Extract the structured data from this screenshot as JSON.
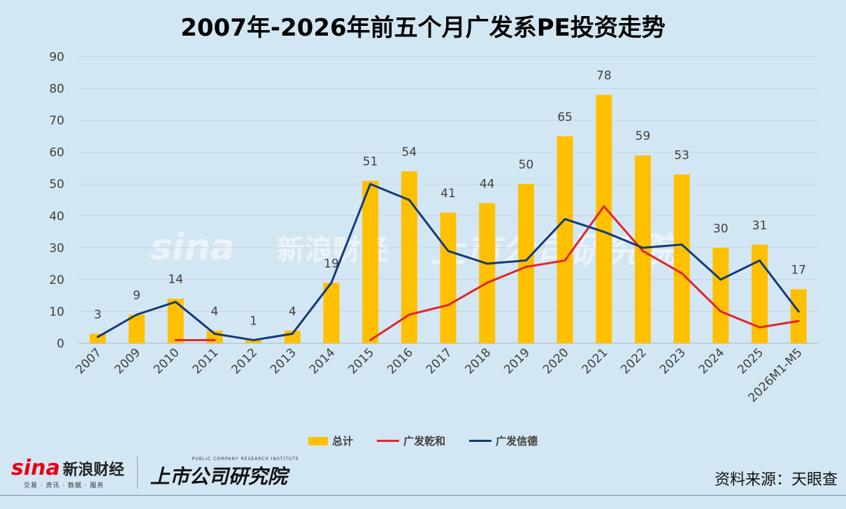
{
  "title": "2007年-2026年前五个月广发系PE投资走势",
  "chart_data": {
    "type": "bar+line",
    "categories": [
      "2007",
      "2009",
      "2010",
      "2011",
      "2012",
      "2013",
      "2014",
      "2015",
      "2016",
      "2017",
      "2018",
      "2019",
      "2020",
      "2021",
      "2022",
      "2023",
      "2024",
      "2025",
      "2026M1-M5"
    ],
    "ylim": [
      0,
      90
    ],
    "yticks": [
      0,
      10,
      20,
      30,
      40,
      50,
      60,
      70,
      80,
      90
    ],
    "grid": true,
    "legend_position": "bottom",
    "series": [
      {
        "name": "总计",
        "kind": "bar",
        "color": "#ffc000",
        "values": [
          3,
          9,
          14,
          4,
          1,
          4,
          19,
          51,
          54,
          41,
          44,
          50,
          65,
          78,
          59,
          53,
          30,
          31,
          17
        ]
      },
      {
        "name": "广发乾和",
        "kind": "line",
        "color": "#e0262b",
        "values": [
          null,
          null,
          1,
          1,
          null,
          null,
          null,
          1,
          9,
          12,
          19,
          24,
          26,
          43,
          29,
          22,
          10,
          5,
          7
        ]
      },
      {
        "name": "广发信德",
        "kind": "line",
        "color": "#143a7b",
        "values": [
          2,
          9,
          13,
          3,
          1,
          3,
          19,
          50,
          45,
          29,
          25,
          26,
          39,
          35,
          30,
          31,
          20,
          26,
          10
        ]
      }
    ]
  },
  "logos": {
    "sina_word": "sina",
    "sina_cn": "新浪财经",
    "sina_sub": "交易 · 资讯 · 数据 · 服务",
    "inst_en": "PUBLIC COMPANY RESEARCH INSTITUTE",
    "inst_cn": "上市公司研究院"
  },
  "source": "资料来源：天眼查"
}
